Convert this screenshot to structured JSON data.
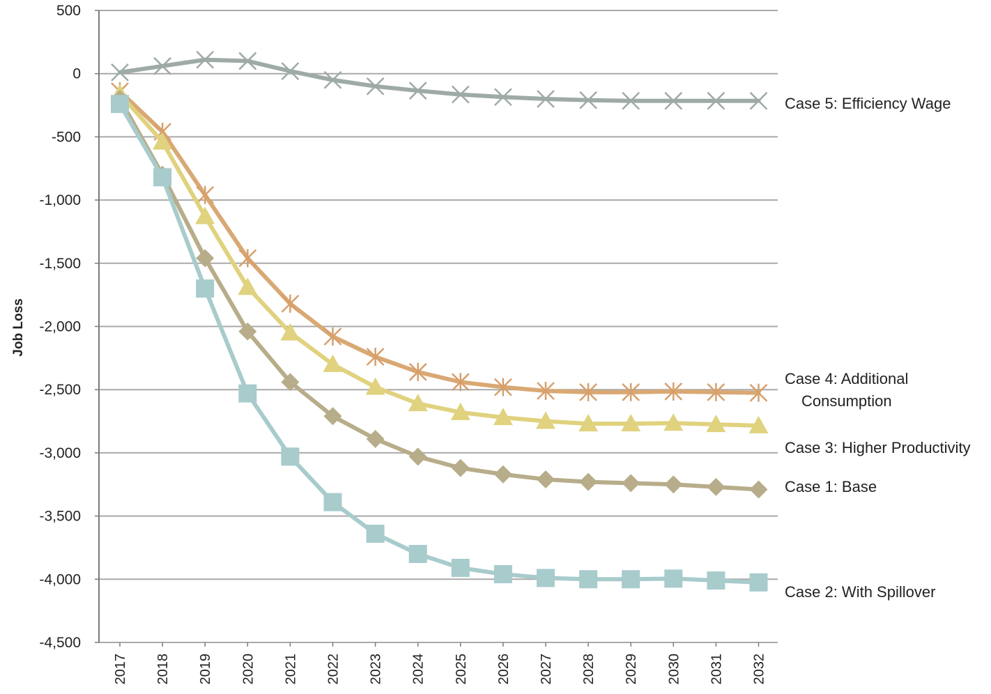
{
  "chart_data": {
    "type": "line",
    "ylabel": "Job Loss",
    "xlabel": "",
    "ylim": [
      -4500,
      500
    ],
    "yticks": [
      500,
      0,
      -500,
      -1000,
      -1500,
      -2000,
      -2500,
      -3000,
      -3500,
      -4000,
      -4500
    ],
    "ytick_labels": [
      "500",
      "0",
      "-500",
      "-1,000",
      "-1,500",
      "-2,000",
      "-2,500",
      "-3,000",
      "-3,500",
      "-4,000",
      "-4,500"
    ],
    "x": [
      "2017",
      "2018",
      "2019",
      "2020",
      "2021",
      "2022",
      "2023",
      "2024",
      "2025",
      "2026",
      "2027",
      "2028",
      "2029",
      "2030",
      "2031",
      "2032"
    ],
    "grid": true,
    "legend": "inline labels at right end of lines",
    "series": [
      {
        "name": "Case 5: Efficiency Wage",
        "label_lines": [
          "Case 5: Efficiency Wage"
        ],
        "marker": "x",
        "color": "#9eaaa6",
        "values": [
          10,
          60,
          110,
          100,
          20,
          -50,
          -100,
          -135,
          -165,
          -185,
          -200,
          -210,
          -215,
          -215,
          -215,
          -215
        ]
      },
      {
        "name": "Case 4: Additional Consumption",
        "label_lines": [
          "Case 4: Additional",
          "Consumption"
        ],
        "marker": "asterisk",
        "color": "#d9a873",
        "values": [
          -140,
          -460,
          -960,
          -1460,
          -1820,
          -2080,
          -2240,
          -2360,
          -2440,
          -2480,
          -2510,
          -2520,
          -2520,
          -2515,
          -2520,
          -2525
        ]
      },
      {
        "name": "Case 3: Higher Productivity",
        "label_lines": [
          "Case 3: Higher Productivity"
        ],
        "marker": "triangle",
        "color": "#e0d27e",
        "values": [
          -160,
          -540,
          -1130,
          -1690,
          -2050,
          -2300,
          -2480,
          -2610,
          -2680,
          -2720,
          -2750,
          -2770,
          -2770,
          -2765,
          -2775,
          -2785
        ]
      },
      {
        "name": "Case 1:  Base",
        "label_lines": [
          "Case 1:  Base"
        ],
        "marker": "diamond",
        "color": "#b7ad8a",
        "values": [
          -200,
          -800,
          -1460,
          -2040,
          -2440,
          -2710,
          -2890,
          -3030,
          -3120,
          -3170,
          -3210,
          -3230,
          -3240,
          -3250,
          -3270,
          -3290
        ]
      },
      {
        "name": "Case 2: With Spillover",
        "label_lines": [
          "Case 2: With Spillover"
        ],
        "marker": "square",
        "color": "#a8cbcc",
        "values": [
          -240,
          -820,
          -1700,
          -2530,
          -3030,
          -3390,
          -3640,
          -3800,
          -3910,
          -3960,
          -3990,
          -4000,
          -4000,
          -3995,
          -4010,
          -4025
        ]
      }
    ]
  }
}
